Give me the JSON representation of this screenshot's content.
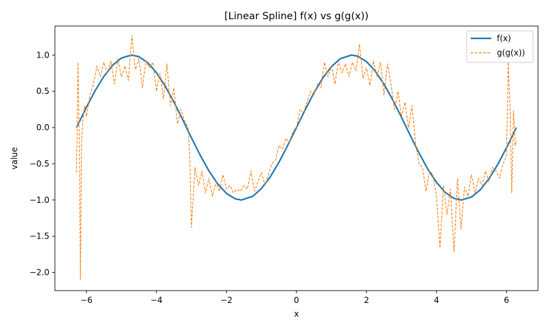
{
  "chart_data": {
    "type": "line",
    "title": "[Linear Spline] f(x) vs g(g(x))",
    "xlabel": "x",
    "ylabel": "value",
    "xlim": [
      -6.9,
      6.9
    ],
    "ylim": [
      -2.25,
      1.4
    ],
    "xticks": [
      -6,
      -4,
      -2,
      0,
      2,
      4,
      6
    ],
    "xtick_labels": [
      "−6",
      "−4",
      "−2",
      "0",
      "2",
      "4",
      "6"
    ],
    "yticks": [
      -2.0,
      -1.5,
      -1.0,
      -0.5,
      0.0,
      0.5,
      1.0
    ],
    "ytick_labels": [
      "−2.0",
      "−1.5",
      "−1.0",
      "−0.5",
      "0.0",
      "0.5",
      "1.0"
    ],
    "grid": false,
    "legend": "top-right",
    "series": [
      {
        "name": "f(x)",
        "color": "#1f77b4",
        "style": "solid",
        "x": [
          -6.283,
          -6.0,
          -5.75,
          -5.5,
          -5.25,
          -5.0,
          -4.712,
          -4.5,
          -4.25,
          -4.0,
          -3.75,
          -3.5,
          -3.25,
          -3.0,
          -2.75,
          -2.5,
          -2.25,
          -2.0,
          -1.75,
          -1.571,
          -1.25,
          -1.0,
          -0.75,
          -0.5,
          -0.25,
          0.0,
          0.25,
          0.5,
          0.75,
          1.0,
          1.25,
          1.571,
          1.75,
          2.0,
          2.25,
          2.5,
          2.75,
          3.0,
          3.25,
          3.5,
          3.75,
          4.0,
          4.25,
          4.5,
          4.712,
          5.0,
          5.25,
          5.5,
          5.75,
          6.0,
          6.283
        ],
        "y": [
          0.0,
          0.279,
          0.509,
          0.706,
          0.859,
          0.959,
          1.0,
          0.978,
          0.895,
          0.757,
          0.572,
          0.351,
          0.108,
          -0.141,
          -0.382,
          -0.598,
          -0.778,
          -0.909,
          -0.984,
          -1.0,
          -0.949,
          -0.841,
          -0.682,
          -0.479,
          -0.247,
          0.0,
          0.247,
          0.479,
          0.682,
          0.841,
          0.949,
          1.0,
          0.984,
          0.909,
          0.778,
          0.598,
          0.382,
          0.141,
          -0.108,
          -0.351,
          -0.572,
          -0.757,
          -0.895,
          -0.978,
          -1.0,
          -0.959,
          -0.859,
          -0.706,
          -0.509,
          -0.279,
          0.0
        ]
      },
      {
        "name": "g(g(x))",
        "color": "#ff7f0e",
        "style": "dashed",
        "x": [
          -6.283,
          -6.24,
          -6.2,
          -6.17,
          -6.14,
          -6.1,
          -6.05,
          -6.0,
          -5.9,
          -5.8,
          -5.7,
          -5.6,
          -5.5,
          -5.4,
          -5.3,
          -5.2,
          -5.1,
          -5.0,
          -4.9,
          -4.8,
          -4.7,
          -4.6,
          -4.5,
          -4.4,
          -4.3,
          -4.2,
          -4.1,
          -4.0,
          -3.9,
          -3.8,
          -3.7,
          -3.6,
          -3.5,
          -3.4,
          -3.3,
          -3.2,
          -3.1,
          -3.05,
          -3.0,
          -2.9,
          -2.8,
          -2.7,
          -2.6,
          -2.5,
          -2.4,
          -2.3,
          -2.2,
          -2.1,
          -2.0,
          -1.9,
          -1.8,
          -1.7,
          -1.6,
          -1.5,
          -1.4,
          -1.3,
          -1.2,
          -1.1,
          -1.0,
          -0.9,
          -0.8,
          -0.7,
          -0.6,
          -0.5,
          -0.4,
          -0.3,
          -0.2,
          -0.1,
          0.0,
          0.1,
          0.2,
          0.3,
          0.4,
          0.5,
          0.6,
          0.7,
          0.8,
          0.9,
          1.0,
          1.1,
          1.2,
          1.3,
          1.4,
          1.5,
          1.6,
          1.7,
          1.8,
          1.9,
          2.0,
          2.1,
          2.2,
          2.3,
          2.4,
          2.5,
          2.6,
          2.7,
          2.8,
          2.9,
          3.0,
          3.1,
          3.2,
          3.3,
          3.4,
          3.5,
          3.6,
          3.7,
          3.8,
          3.9,
          4.0,
          4.1,
          4.2,
          4.3,
          4.4,
          4.5,
          4.6,
          4.7,
          4.8,
          4.9,
          5.0,
          5.1,
          5.2,
          5.3,
          5.4,
          5.5,
          5.6,
          5.7,
          5.8,
          5.9,
          6.0,
          6.05,
          6.1,
          6.15,
          6.2,
          6.25,
          6.283
        ],
        "y": [
          -0.62,
          0.9,
          -0.3,
          -2.1,
          -0.2,
          0.1,
          0.3,
          0.15,
          0.45,
          0.6,
          0.85,
          0.7,
          0.9,
          0.75,
          0.92,
          0.6,
          0.95,
          0.7,
          0.85,
          0.65,
          1.27,
          0.8,
          0.95,
          0.55,
          0.92,
          0.82,
          0.9,
          0.5,
          0.75,
          0.4,
          0.88,
          0.3,
          0.55,
          0.05,
          0.25,
          0.1,
          0.0,
          -0.35,
          -1.38,
          -0.55,
          -0.8,
          -0.6,
          -0.9,
          -0.7,
          -0.95,
          -0.75,
          -0.88,
          -0.65,
          -0.85,
          -0.8,
          -0.9,
          -0.85,
          -0.88,
          -0.8,
          -0.85,
          -0.6,
          -0.88,
          -0.75,
          -0.62,
          -0.8,
          -0.65,
          -0.5,
          -0.45,
          -0.25,
          -0.3,
          -0.15,
          -0.2,
          -0.05,
          0.0,
          0.25,
          0.2,
          0.35,
          0.5,
          0.45,
          0.6,
          0.55,
          0.9,
          0.7,
          0.85,
          0.6,
          0.92,
          0.75,
          0.88,
          0.7,
          0.9,
          0.78,
          1.15,
          0.68,
          0.82,
          0.58,
          0.92,
          0.7,
          0.9,
          0.45,
          0.88,
          0.6,
          0.25,
          0.5,
          0.15,
          0.35,
          0.0,
          0.3,
          -0.2,
          -0.5,
          -0.55,
          -0.88,
          -0.6,
          -0.65,
          -0.95,
          -1.66,
          -0.8,
          -1.2,
          -0.85,
          -1.72,
          -0.7,
          -1.4,
          -0.82,
          -0.95,
          -0.65,
          -0.9,
          -0.7,
          -0.8,
          -0.6,
          -0.75,
          -0.55,
          -0.6,
          -0.7,
          -0.5,
          -0.4,
          0.9,
          0.3,
          -0.9,
          0.23,
          -0.25,
          -0.18
        ]
      }
    ]
  }
}
